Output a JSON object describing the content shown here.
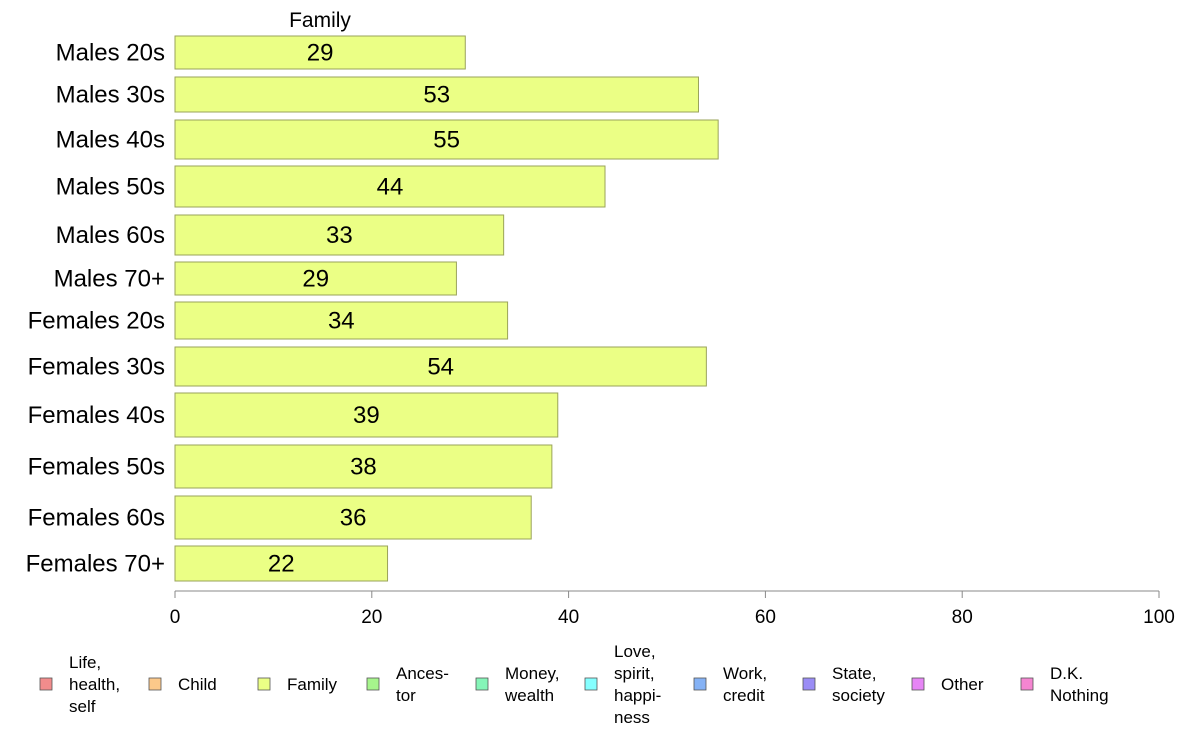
{
  "chart_data": {
    "type": "bar",
    "orientation": "horizontal",
    "title": "Family",
    "categories": [
      "Males 20s",
      "Males 30s",
      "Males 40s",
      "Males 50s",
      "Males 60s",
      "Males 70+",
      "Females 20s",
      "Females 30s",
      "Females 40s",
      "Females 50s",
      "Females 60s",
      "Females 70+"
    ],
    "series": [
      {
        "name": "Family",
        "color": "#ebff85",
        "values": [
          29.5,
          53.2,
          55.2,
          43.7,
          33.4,
          28.6,
          33.8,
          54.0,
          38.9,
          38.3,
          36.2,
          21.6
        ],
        "labels": [
          "29",
          "53",
          "55",
          "44",
          "33",
          "29",
          "34",
          "54",
          "39",
          "38",
          "36",
          "22"
        ]
      }
    ],
    "xlim": [
      0,
      100
    ],
    "xticks": [
      "0",
      "20",
      "40",
      "60",
      "80",
      "100"
    ],
    "xlabel": "",
    "ylabel": "",
    "grid": false,
    "legend_position": "bottom",
    "legend": [
      {
        "label": "Life,\nhealth,\nself",
        "color": "#f28c8c"
      },
      {
        "label": "Child",
        "color": "#fcc98a"
      },
      {
        "label": "Family",
        "color": "#ebff85"
      },
      {
        "label": "Ances-\ntor",
        "color": "#a6f58c"
      },
      {
        "label": "Money,\nwealth",
        "color": "#85f5b8"
      },
      {
        "label": "Love,\nspirit,\nhappi-\nness",
        "color": "#85ffff"
      },
      {
        "label": "Work,\ncredit",
        "color": "#85b2f5"
      },
      {
        "label": "State,\nsociety",
        "color": "#9a8cf5"
      },
      {
        "label": "Other",
        "color": "#e685f5"
      },
      {
        "label": "D.K.\nNothing",
        "color": "#f585d1"
      }
    ]
  }
}
